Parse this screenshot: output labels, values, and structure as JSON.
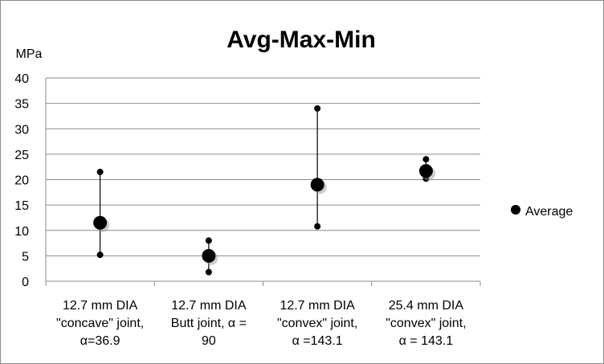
{
  "chart_data": {
    "type": "scatter",
    "title": "Avg-Max-Min",
    "ylabel": "MPa",
    "xlabel": "",
    "ylim": [
      0,
      40
    ],
    "yticks": [
      0,
      5,
      10,
      15,
      20,
      25,
      30,
      35,
      40
    ],
    "grid": true,
    "legend_position": "right",
    "categories": [
      [
        "12.7 mm DIA",
        "\"concave\" joint,",
        "α=36.9"
      ],
      [
        "12.7 mm DIA",
        "Butt joint, α =",
        "90"
      ],
      [
        "12.7 mm DIA",
        "\"convex\" joint,",
        "α =143.1"
      ],
      [
        "25.4 mm DIA",
        "\"convex\" joint,",
        "α = 143.1"
      ]
    ],
    "series": [
      {
        "name": "Average",
        "values": [
          11.5,
          5,
          19,
          21.7
        ]
      }
    ],
    "max": [
      21.5,
      8,
      34,
      24
    ],
    "min": [
      5.2,
      1.8,
      10.8,
      20.2
    ],
    "colors": {
      "marker": "#000000",
      "grid": "#8c8c8c",
      "axis": "#8c8c8c"
    }
  }
}
